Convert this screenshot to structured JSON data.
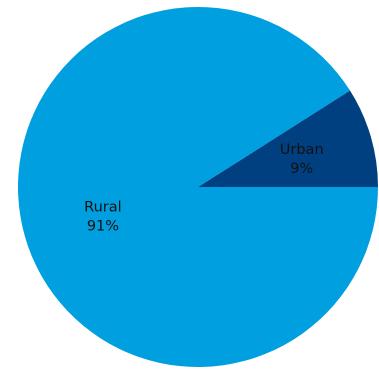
{
  "chart_data": {
    "type": "pie",
    "slices": [
      {
        "label": "Urban",
        "value": 9,
        "value_label": "9%",
        "color": "#004080"
      },
      {
        "label": "Rural",
        "value": 91,
        "value_label": "91%",
        "color": "#009fdf"
      }
    ],
    "start_angle_deg": 0,
    "direction": "counterclockwise",
    "legend": "none",
    "labels": "inside"
  }
}
